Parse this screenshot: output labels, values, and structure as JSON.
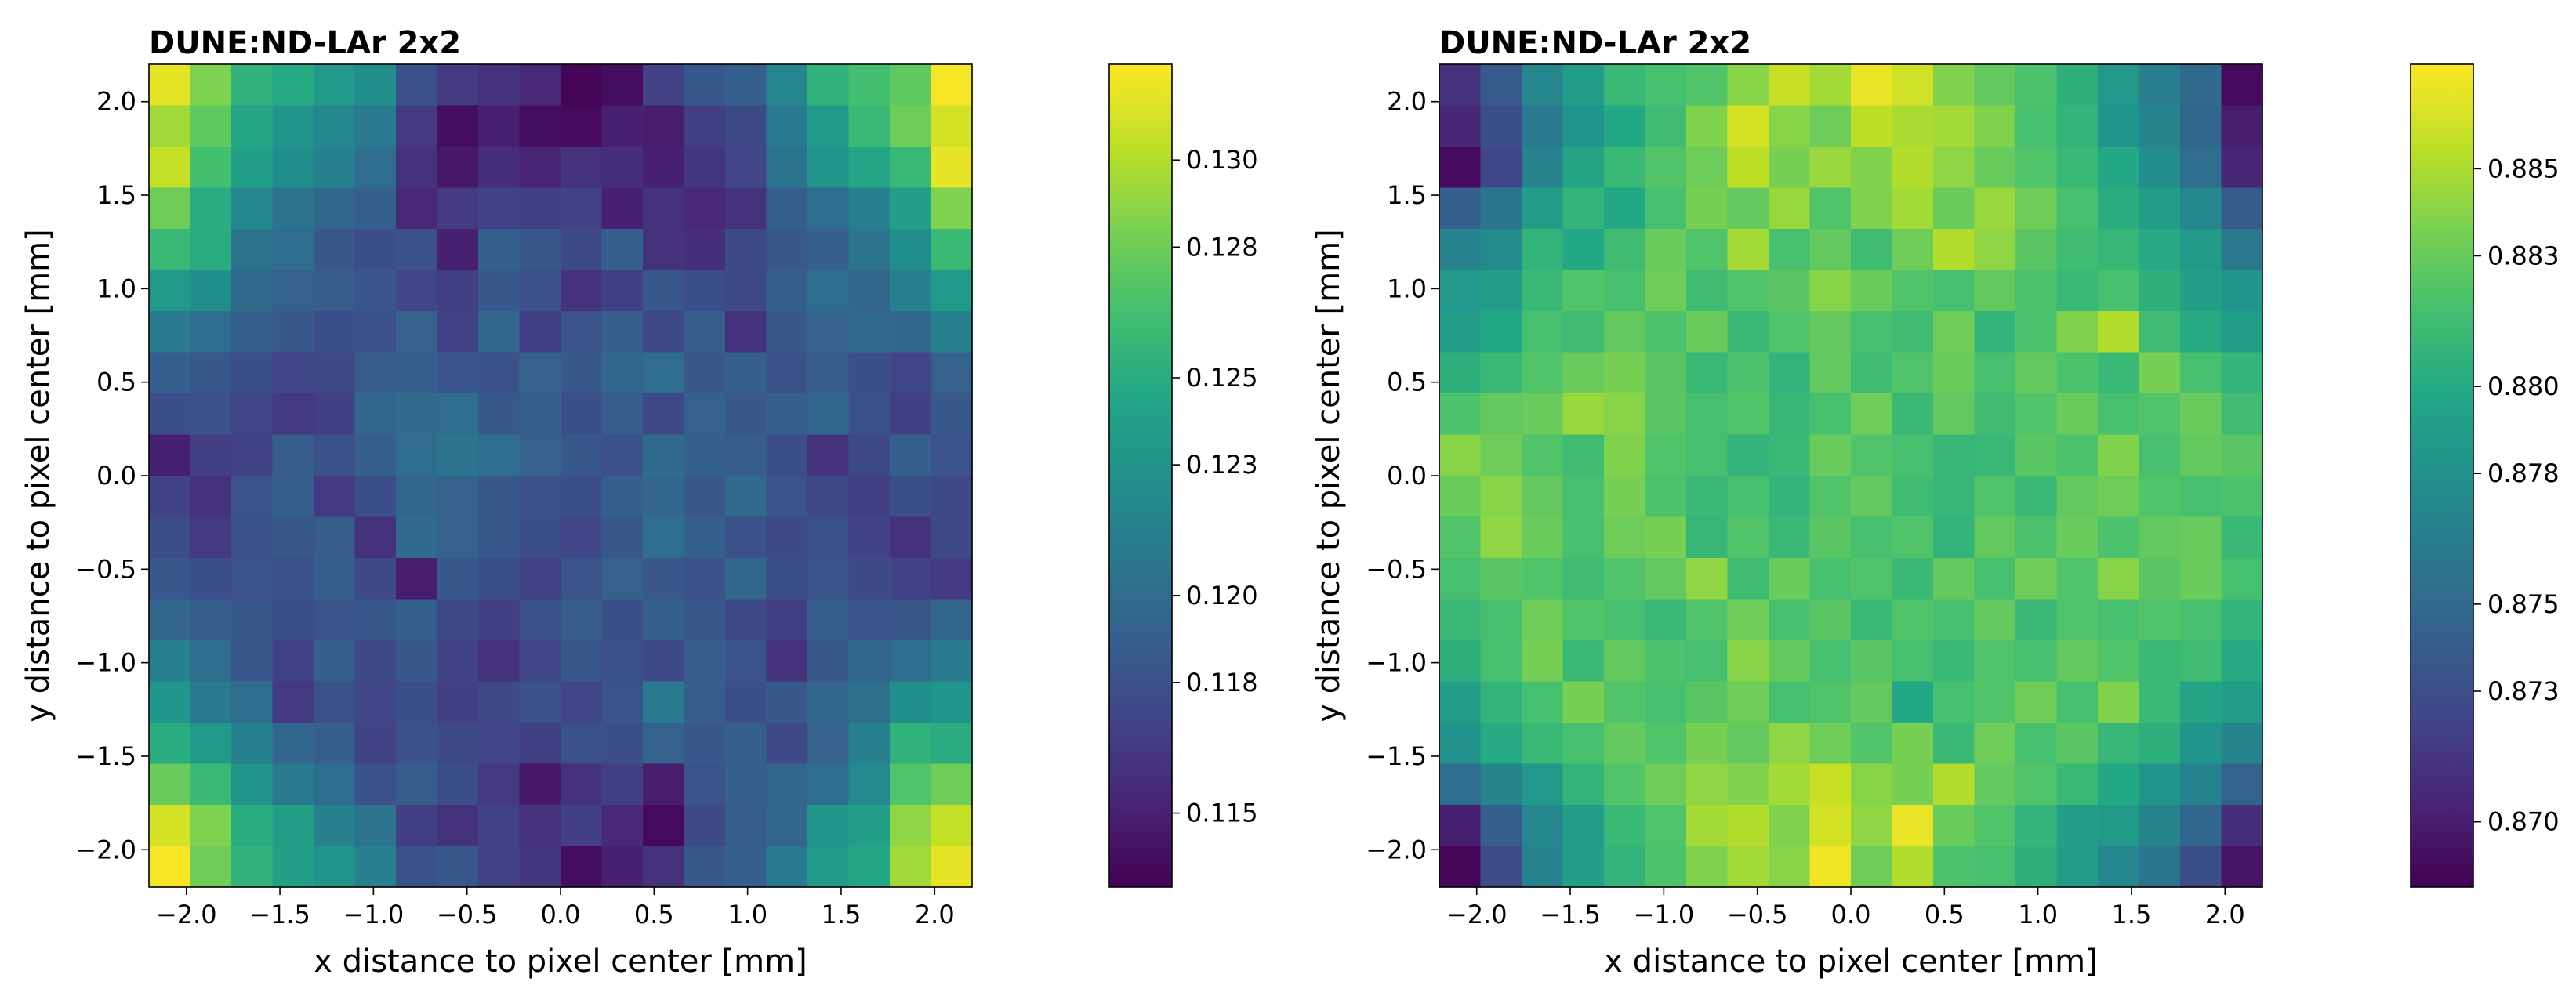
{
  "figure": {
    "colormap": "viridis",
    "colormap_stops": [
      "#440154",
      "#482475",
      "#414487",
      "#355f8d",
      "#2a788e",
      "#21918c",
      "#22a884",
      "#44bf70",
      "#7ad151",
      "#bddf26",
      "#fde725"
    ]
  },
  "chart_data": [
    {
      "type": "heatmap",
      "title": "DUNE:ND-LAr 2x2",
      "xlabel": "x distance to pixel center [mm]",
      "ylabel": "y distance to pixel center [mm]",
      "xlim": [
        -2.2,
        2.2
      ],
      "ylim": [
        -2.2,
        2.2
      ],
      "xticks": [
        -2.0,
        -1.5,
        -1.0,
        -0.5,
        0.0,
        0.5,
        1.0,
        1.5,
        2.0
      ],
      "xtick_labels": [
        "−2.0",
        "−1.5",
        "−1.0",
        "−0.5",
        "0.0",
        "0.5",
        "1.0",
        "1.5",
        "2.0"
      ],
      "yticks": [
        2.0,
        1.5,
        1.0,
        0.5,
        0.0,
        -0.5,
        -1.0,
        -1.5,
        -2.0
      ],
      "ytick_labels": [
        "2.0",
        "1.5",
        "1.0",
        "0.5",
        "0.0",
        "−0.5",
        "−1.0",
        "−1.5",
        "−2.0"
      ],
      "colorbar": {
        "vmin": 0.1133,
        "vmax": 0.1322,
        "ticks": [
          0.13,
          0.128,
          0.125,
          0.123,
          0.12,
          0.118,
          0.115
        ],
        "tick_labels": [
          "0.130",
          "0.128",
          "0.125",
          "0.123",
          "0.120",
          "0.118",
          "0.115"
        ]
      },
      "grid": {
        "nx": 20,
        "ny": 20,
        "rows_top_to_bottom": true,
        "values": [
          [
            0.1315,
            0.1285,
            0.1255,
            0.1248,
            0.1235,
            0.1225,
            0.118,
            0.1165,
            0.116,
            0.1155,
            0.1135,
            0.114,
            0.117,
            0.1185,
            0.119,
            0.122,
            0.1255,
            0.1265,
            0.1275,
            0.132
          ],
          [
            0.1295,
            0.1275,
            0.1245,
            0.123,
            0.122,
            0.121,
            0.1165,
            0.114,
            0.115,
            0.114,
            0.1138,
            0.115,
            0.1148,
            0.1168,
            0.1175,
            0.121,
            0.1235,
            0.126,
            0.128,
            0.131
          ],
          [
            0.1305,
            0.1265,
            0.124,
            0.1225,
            0.1215,
            0.12,
            0.116,
            0.1145,
            0.1158,
            0.1152,
            0.116,
            0.1158,
            0.115,
            0.1162,
            0.1172,
            0.1205,
            0.123,
            0.1245,
            0.126,
            0.1315
          ],
          [
            0.128,
            0.125,
            0.122,
            0.1205,
            0.1195,
            0.119,
            0.1155,
            0.1165,
            0.117,
            0.1168,
            0.117,
            0.115,
            0.116,
            0.1155,
            0.116,
            0.119,
            0.12,
            0.1215,
            0.124,
            0.1285
          ],
          [
            0.126,
            0.125,
            0.1205,
            0.12,
            0.1185,
            0.1178,
            0.118,
            0.115,
            0.119,
            0.1185,
            0.1175,
            0.119,
            0.116,
            0.1158,
            0.1175,
            0.1185,
            0.119,
            0.1205,
            0.1225,
            0.126
          ],
          [
            0.1235,
            0.1225,
            0.1198,
            0.1192,
            0.1188,
            0.1183,
            0.1172,
            0.1168,
            0.1185,
            0.118,
            0.116,
            0.1168,
            0.1185,
            0.1178,
            0.1175,
            0.119,
            0.12,
            0.1195,
            0.1215,
            0.1235
          ],
          [
            0.121,
            0.12,
            0.119,
            0.1185,
            0.1178,
            0.118,
            0.1192,
            0.117,
            0.1195,
            0.1168,
            0.1182,
            0.119,
            0.1175,
            0.1188,
            0.116,
            0.1185,
            0.1192,
            0.1198,
            0.1195,
            0.1215
          ],
          [
            0.119,
            0.1185,
            0.1178,
            0.1172,
            0.1175,
            0.1188,
            0.119,
            0.1183,
            0.118,
            0.1192,
            0.1185,
            0.1195,
            0.12,
            0.1185,
            0.119,
            0.118,
            0.1188,
            0.1178,
            0.1172,
            0.1192
          ],
          [
            0.1178,
            0.118,
            0.1172,
            0.1165,
            0.1168,
            0.1195,
            0.1198,
            0.12,
            0.1185,
            0.119,
            0.1178,
            0.1188,
            0.1175,
            0.1192,
            0.1185,
            0.119,
            0.1195,
            0.118,
            0.1168,
            0.1185
          ],
          [
            0.115,
            0.1168,
            0.117,
            0.1188,
            0.118,
            0.119,
            0.12,
            0.1205,
            0.12,
            0.1192,
            0.1185,
            0.118,
            0.1198,
            0.119,
            0.1188,
            0.1178,
            0.116,
            0.1175,
            0.119,
            0.1182
          ],
          [
            0.117,
            0.116,
            0.1182,
            0.119,
            0.1165,
            0.1178,
            0.1195,
            0.1192,
            0.1185,
            0.118,
            0.1178,
            0.119,
            0.1195,
            0.1185,
            0.1198,
            0.1182,
            0.1175,
            0.1168,
            0.1178,
            0.1175
          ],
          [
            0.1178,
            0.1165,
            0.118,
            0.1185,
            0.1188,
            0.116,
            0.1198,
            0.1192,
            0.1185,
            0.1178,
            0.1172,
            0.1185,
            0.12,
            0.119,
            0.118,
            0.1175,
            0.118,
            0.117,
            0.116,
            0.1175
          ],
          [
            0.1185,
            0.1178,
            0.1182,
            0.118,
            0.119,
            0.1175,
            0.1148,
            0.1185,
            0.1178,
            0.117,
            0.1182,
            0.1192,
            0.1185,
            0.118,
            0.1195,
            0.1178,
            0.1182,
            0.1175,
            0.117,
            0.1165
          ],
          [
            0.1195,
            0.1188,
            0.1185,
            0.1178,
            0.1182,
            0.1185,
            0.119,
            0.1175,
            0.1168,
            0.118,
            0.1188,
            0.1178,
            0.119,
            0.1185,
            0.1175,
            0.1168,
            0.119,
            0.1182,
            0.1185,
            0.1195
          ],
          [
            0.1215,
            0.12,
            0.1185,
            0.117,
            0.119,
            0.1175,
            0.1185,
            0.117,
            0.116,
            0.1172,
            0.1185,
            0.118,
            0.1175,
            0.1188,
            0.1182,
            0.116,
            0.1185,
            0.1195,
            0.12,
            0.121
          ],
          [
            0.1232,
            0.121,
            0.12,
            0.1165,
            0.118,
            0.1172,
            0.1178,
            0.1168,
            0.1175,
            0.118,
            0.1172,
            0.1182,
            0.121,
            0.1188,
            0.1178,
            0.1185,
            0.1195,
            0.1202,
            0.1225,
            0.123
          ],
          [
            0.125,
            0.1235,
            0.1215,
            0.1195,
            0.119,
            0.117,
            0.118,
            0.1175,
            0.1172,
            0.1168,
            0.118,
            0.1178,
            0.1192,
            0.1185,
            0.119,
            0.1175,
            0.1192,
            0.1215,
            0.1255,
            0.125
          ],
          [
            0.1278,
            0.126,
            0.123,
            0.121,
            0.12,
            0.118,
            0.1188,
            0.1178,
            0.1165,
            0.1145,
            0.116,
            0.1168,
            0.1148,
            0.1182,
            0.119,
            0.1195,
            0.12,
            0.1222,
            0.127,
            0.128
          ],
          [
            0.131,
            0.1285,
            0.125,
            0.124,
            0.1215,
            0.1205,
            0.1168,
            0.116,
            0.117,
            0.116,
            0.1168,
            0.1155,
            0.1138,
            0.1175,
            0.1188,
            0.1195,
            0.1232,
            0.124,
            0.129,
            0.1305
          ],
          [
            0.132,
            0.128,
            0.1255,
            0.124,
            0.123,
            0.1215,
            0.118,
            0.1185,
            0.117,
            0.1162,
            0.114,
            0.115,
            0.116,
            0.1185,
            0.119,
            0.121,
            0.1235,
            0.1245,
            0.1295,
            0.1315
          ]
        ]
      }
    },
    {
      "type": "heatmap",
      "title": "DUNE:ND-LAr 2x2",
      "xlabel": "x distance to pixel center [mm]",
      "ylabel": "y distance to pixel center [mm]",
      "xlim": [
        -2.2,
        2.2
      ],
      "ylim": [
        -2.2,
        2.2
      ],
      "xticks": [
        -2.0,
        -1.5,
        -1.0,
        -0.5,
        0.0,
        0.5,
        1.0,
        1.5,
        2.0
      ],
      "xtick_labels": [
        "−2.0",
        "−1.5",
        "−1.0",
        "−0.5",
        "0.0",
        "0.5",
        "1.0",
        "1.5",
        "2.0"
      ],
      "yticks": [
        2.0,
        1.5,
        1.0,
        0.5,
        0.0,
        -0.5,
        -1.0,
        -1.5,
        -2.0
      ],
      "ytick_labels": [
        "2.0",
        "1.5",
        "1.0",
        "0.5",
        "0.0",
        "−0.5",
        "−1.0",
        "−1.5",
        "−2.0"
      ],
      "colorbar": {
        "vmin": 0.8685,
        "vmax": 0.8874,
        "ticks": [
          0.885,
          0.883,
          0.88,
          0.878,
          0.875,
          0.873,
          0.87
        ],
        "tick_labels": [
          "0.885",
          "0.883",
          "0.880",
          "0.878",
          "0.875",
          "0.873",
          "0.870"
        ]
      },
      "grid": {
        "nx": 20,
        "ny": 20,
        "rows_top_to_bottom": true,
        "values": [
          [
            0.8712,
            0.8738,
            0.8772,
            0.879,
            0.8812,
            0.8818,
            0.8822,
            0.884,
            0.8858,
            0.8848,
            0.8868,
            0.886,
            0.8838,
            0.8828,
            0.882,
            0.8805,
            0.8785,
            0.8765,
            0.875,
            0.869
          ],
          [
            0.8705,
            0.873,
            0.8762,
            0.8782,
            0.8798,
            0.8815,
            0.8838,
            0.8862,
            0.884,
            0.8832,
            0.8855,
            0.885,
            0.8848,
            0.8838,
            0.8818,
            0.8808,
            0.8782,
            0.877,
            0.8748,
            0.87
          ],
          [
            0.869,
            0.8725,
            0.8768,
            0.8795,
            0.8812,
            0.8822,
            0.8832,
            0.8855,
            0.8835,
            0.8845,
            0.8838,
            0.8852,
            0.8842,
            0.883,
            0.8822,
            0.8812,
            0.8798,
            0.8778,
            0.8752,
            0.8705
          ],
          [
            0.8742,
            0.8758,
            0.879,
            0.8808,
            0.8798,
            0.8818,
            0.8835,
            0.8828,
            0.8845,
            0.8822,
            0.8838,
            0.8848,
            0.883,
            0.8845,
            0.8832,
            0.8818,
            0.8802,
            0.879,
            0.8772,
            0.8738
          ],
          [
            0.8768,
            0.8775,
            0.8808,
            0.8798,
            0.8815,
            0.883,
            0.8822,
            0.8848,
            0.8818,
            0.8828,
            0.8815,
            0.8832,
            0.8852,
            0.8842,
            0.8825,
            0.8815,
            0.881,
            0.88,
            0.8788,
            0.876
          ],
          [
            0.8785,
            0.879,
            0.8812,
            0.8822,
            0.8818,
            0.8832,
            0.8815,
            0.8822,
            0.8825,
            0.884,
            0.883,
            0.8822,
            0.8818,
            0.8828,
            0.882,
            0.8812,
            0.8818,
            0.8805,
            0.8792,
            0.8782
          ],
          [
            0.879,
            0.8798,
            0.8818,
            0.8815,
            0.8828,
            0.882,
            0.883,
            0.8812,
            0.8822,
            0.8828,
            0.8818,
            0.8815,
            0.8832,
            0.8808,
            0.882,
            0.8838,
            0.8852,
            0.8815,
            0.88,
            0.8792
          ],
          [
            0.8805,
            0.8812,
            0.8822,
            0.883,
            0.8835,
            0.8825,
            0.8812,
            0.882,
            0.8808,
            0.8828,
            0.8815,
            0.8822,
            0.883,
            0.8818,
            0.8828,
            0.882,
            0.8812,
            0.8835,
            0.8818,
            0.8808
          ],
          [
            0.882,
            0.8828,
            0.883,
            0.8845,
            0.884,
            0.8825,
            0.8818,
            0.8822,
            0.881,
            0.8818,
            0.8832,
            0.8812,
            0.8828,
            0.8815,
            0.8822,
            0.883,
            0.8818,
            0.8822,
            0.883,
            0.8815
          ],
          [
            0.884,
            0.8832,
            0.8822,
            0.8815,
            0.8838,
            0.8822,
            0.8818,
            0.8808,
            0.8812,
            0.883,
            0.8822,
            0.8818,
            0.881,
            0.8812,
            0.8825,
            0.882,
            0.8838,
            0.8818,
            0.8828,
            0.8825
          ],
          [
            0.883,
            0.884,
            0.8828,
            0.8818,
            0.8835,
            0.882,
            0.8812,
            0.8818,
            0.8808,
            0.8822,
            0.8828,
            0.8815,
            0.881,
            0.8822,
            0.8812,
            0.8828,
            0.8832,
            0.8822,
            0.8818,
            0.882
          ],
          [
            0.8822,
            0.8842,
            0.883,
            0.8818,
            0.8832,
            0.8835,
            0.881,
            0.8822,
            0.8812,
            0.8825,
            0.8818,
            0.8822,
            0.8808,
            0.8828,
            0.882,
            0.883,
            0.882,
            0.8828,
            0.883,
            0.8812
          ],
          [
            0.8818,
            0.8825,
            0.8822,
            0.8815,
            0.8822,
            0.8828,
            0.8842,
            0.8815,
            0.883,
            0.8818,
            0.8822,
            0.8812,
            0.8828,
            0.8818,
            0.8832,
            0.8822,
            0.884,
            0.8825,
            0.883,
            0.8818
          ],
          [
            0.8812,
            0.8818,
            0.8832,
            0.8822,
            0.8818,
            0.8812,
            0.8822,
            0.8832,
            0.8818,
            0.8825,
            0.8812,
            0.8822,
            0.8818,
            0.8828,
            0.8812,
            0.8822,
            0.8818,
            0.8822,
            0.8818,
            0.8808
          ],
          [
            0.8805,
            0.8818,
            0.8835,
            0.8812,
            0.8828,
            0.882,
            0.8818,
            0.884,
            0.8828,
            0.8818,
            0.8825,
            0.8818,
            0.8812,
            0.8822,
            0.8818,
            0.8828,
            0.8822,
            0.8812,
            0.8815,
            0.88
          ],
          [
            0.879,
            0.8808,
            0.8818,
            0.8835,
            0.8822,
            0.8818,
            0.8825,
            0.8832,
            0.8818,
            0.8822,
            0.8828,
            0.8798,
            0.8818,
            0.8822,
            0.8832,
            0.8818,
            0.8838,
            0.8812,
            0.8795,
            0.879
          ],
          [
            0.878,
            0.88,
            0.8812,
            0.8818,
            0.8828,
            0.8822,
            0.8835,
            0.8828,
            0.8842,
            0.8832,
            0.8822,
            0.8835,
            0.8812,
            0.8832,
            0.8818,
            0.8825,
            0.881,
            0.8805,
            0.8782,
            0.877
          ],
          [
            0.8752,
            0.877,
            0.8785,
            0.8808,
            0.8822,
            0.8832,
            0.8842,
            0.8838,
            0.8848,
            0.8858,
            0.884,
            0.8835,
            0.8852,
            0.8828,
            0.8822,
            0.8812,
            0.8798,
            0.8782,
            0.8768,
            0.8745
          ],
          [
            0.8702,
            0.8742,
            0.8772,
            0.879,
            0.8812,
            0.8822,
            0.8848,
            0.8852,
            0.8838,
            0.8862,
            0.8842,
            0.8868,
            0.883,
            0.8822,
            0.8808,
            0.8792,
            0.8788,
            0.877,
            0.8748,
            0.871
          ],
          [
            0.8688,
            0.8728,
            0.8768,
            0.8792,
            0.8808,
            0.882,
            0.8838,
            0.8848,
            0.884,
            0.887,
            0.8832,
            0.8852,
            0.882,
            0.8818,
            0.8805,
            0.879,
            0.8772,
            0.8758,
            0.873,
            0.8695
          ]
        ]
      }
    }
  ]
}
